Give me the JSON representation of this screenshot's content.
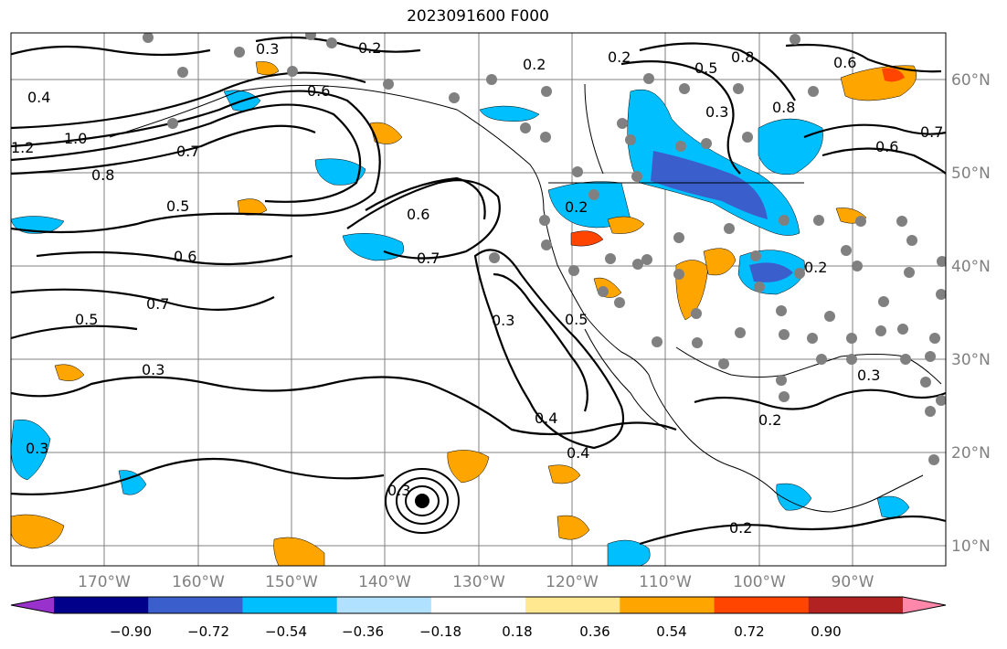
{
  "title": "2023091600 F000",
  "map": {
    "lon_ticks": [
      "170°W",
      "160°W",
      "150°W",
      "140°W",
      "130°W",
      "120°W",
      "110°W",
      "100°W",
      "90°W"
    ],
    "lat_ticks": [
      "60°N",
      "50°N",
      "40°N",
      "30°N",
      "20°N",
      "10°N"
    ],
    "contour_labels": [
      "0.3",
      "0.2",
      "0.4",
      "0.6",
      "1.2",
      "1.0",
      "0.7",
      "0.8",
      "0.5",
      "0.6",
      "0.7",
      "0.5",
      "0.3",
      "0.3",
      "0.6",
      "0.7",
      "0.2",
      "0.4",
      "0.4",
      "0.2",
      "0.3",
      "0.2",
      "0.8",
      "0.5",
      "0.8",
      "0.3",
      "0.6",
      "0.7",
      "0.3",
      "0.2",
      "0.6",
      "0.5",
      "0.2",
      "0.3",
      "0.2"
    ],
    "colors": {
      "contour": "#000000",
      "grid": "#808080",
      "station_dot": "#808080",
      "center_dot": "#000000"
    }
  },
  "colorbar": {
    "tick_labels": [
      "−0.90",
      "−0.72",
      "−0.54",
      "−0.36",
      "−0.18",
      "0.18",
      "0.36",
      "0.54",
      "0.72",
      "0.90"
    ],
    "bins": [
      "#9932CC",
      "#00008B",
      "#3A5FCD",
      "#00BFFF",
      "#B0E2FF",
      "#FFFFFF",
      "#FFE88F",
      "#FFA500",
      "#FF4500",
      "#B22222",
      "#FF88AA"
    ]
  }
}
